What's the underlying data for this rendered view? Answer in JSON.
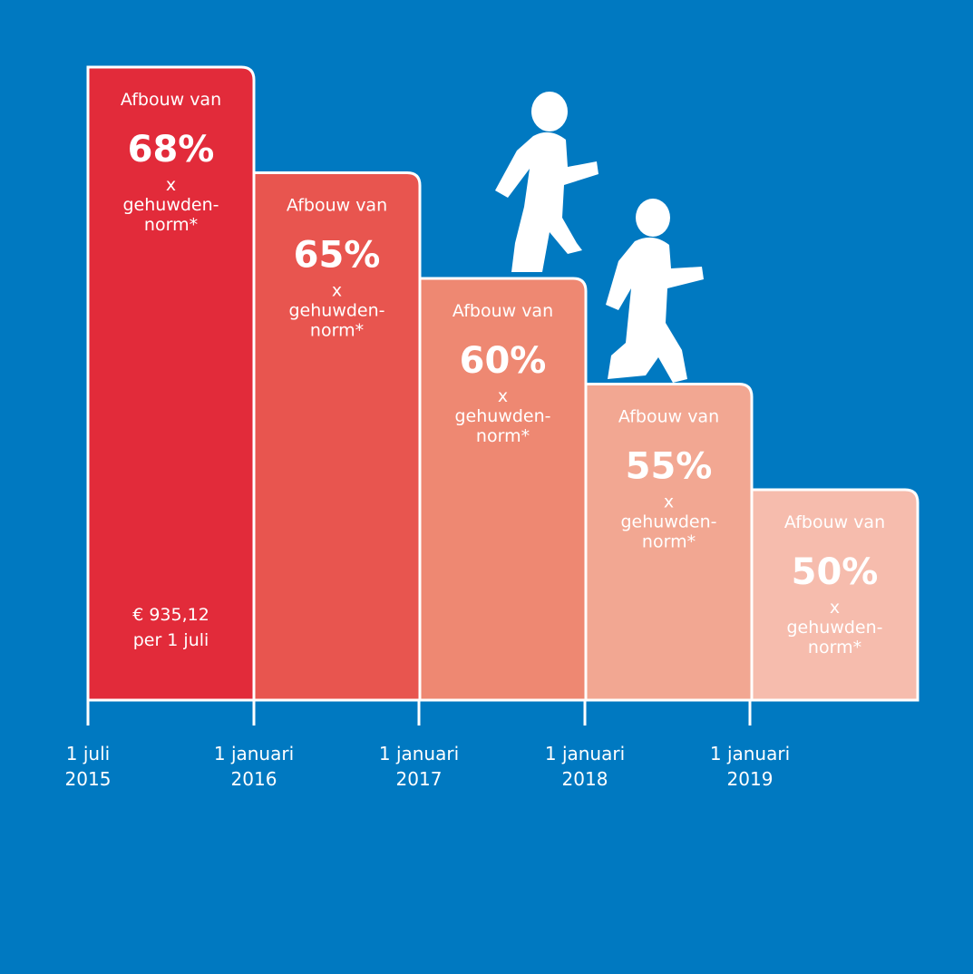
{
  "colors": {
    "background": "#0079c1",
    "white": "#ffffff",
    "step_fills": [
      "#e22b3a",
      "#e8554f",
      "#ee8872",
      "#f2a792",
      "#f6bcad"
    ]
  },
  "chart_data": {
    "type": "bar",
    "categories": [
      "1 juli 2015",
      "1 januari 2016",
      "1 januari 2017",
      "1 januari 2018",
      "1 januari 2019"
    ],
    "values": [
      68,
      65,
      60,
      55,
      50
    ],
    "ylim": [
      0,
      70
    ],
    "grid": false,
    "legend": "none",
    "bars": [
      {
        "label_top": "Afbouw van",
        "value_label": "68%",
        "label_x": "x",
        "label_norm_1": "gehuwden-",
        "label_norm_2": "norm*",
        "extra_1": "€ 935,12",
        "extra_2": "per 1 juli"
      },
      {
        "label_top": "Afbouw van",
        "value_label": "65%",
        "label_x": "x",
        "label_norm_1": "gehuwden-",
        "label_norm_2": "norm*"
      },
      {
        "label_top": "Afbouw van",
        "value_label": "60%",
        "label_x": "x",
        "label_norm_1": "gehuwden-",
        "label_norm_2": "norm*"
      },
      {
        "label_top": "Afbouw van",
        "value_label": "55%",
        "label_x": "x",
        "label_norm_1": "gehuwden-",
        "label_norm_2": "norm*"
      },
      {
        "label_top": "Afbouw van",
        "value_label": "50%",
        "label_x": "x",
        "label_norm_1": "gehuwden-",
        "label_norm_2": "norm*"
      }
    ],
    "x_ticks": [
      {
        "line1": "1 juli",
        "line2": "2015"
      },
      {
        "line1": "1 januari",
        "line2": "2016"
      },
      {
        "line1": "1 januari",
        "line2": "2017"
      },
      {
        "line1": "1 januari",
        "line2": "2018"
      },
      {
        "line1": "1 januari",
        "line2": "2019"
      }
    ]
  },
  "icons": [
    "walking-person-icon",
    "walking-person-icon"
  ]
}
